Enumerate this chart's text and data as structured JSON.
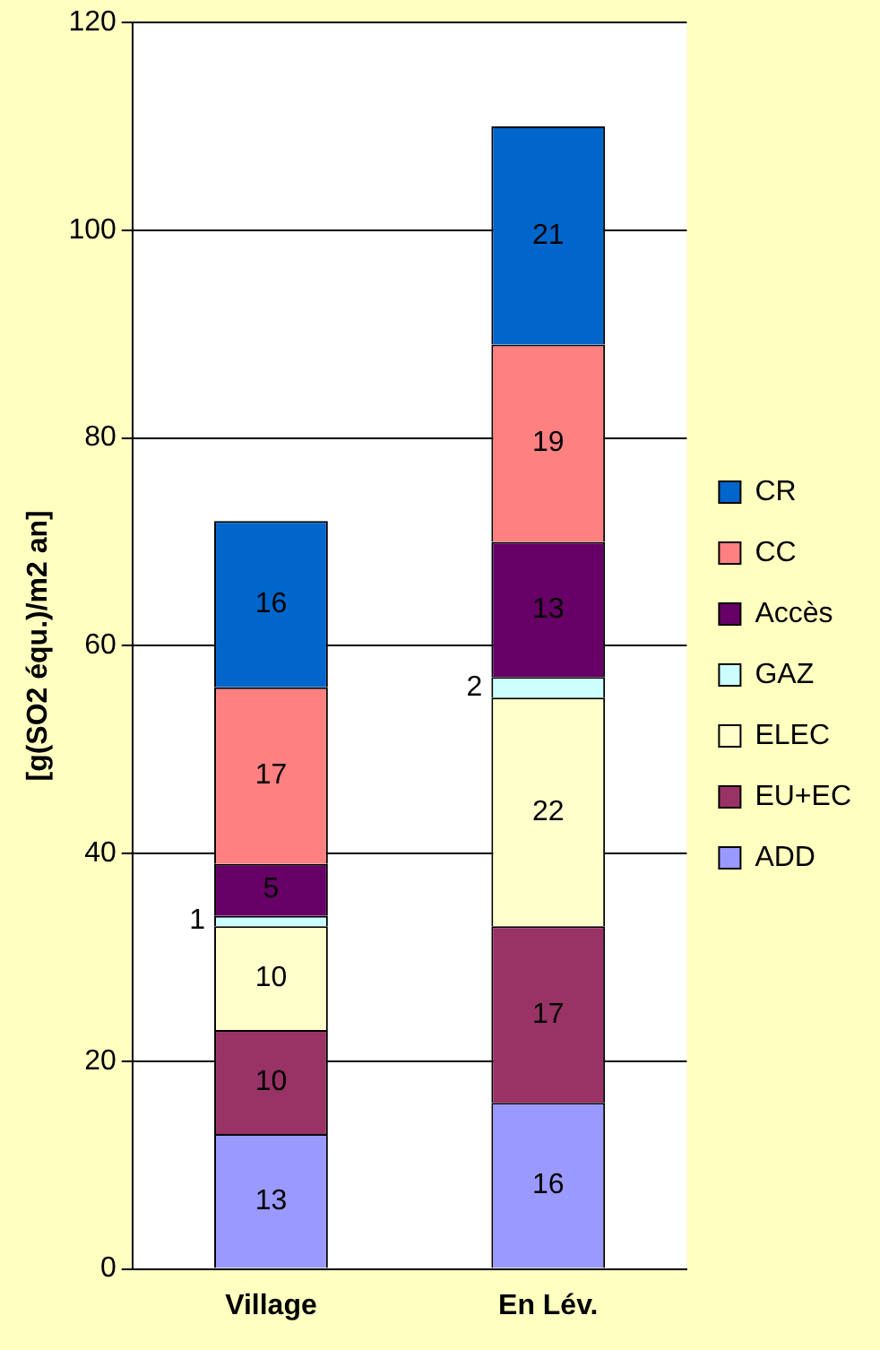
{
  "chart_data": {
    "type": "bar",
    "stacked": true,
    "ylabel": "[g(SO2 équ.)/m2 an]",
    "categories": [
      "Village",
      "En Lév."
    ],
    "series": [
      {
        "name": "ADD",
        "color": "#9999ff",
        "values": [
          13,
          16
        ]
      },
      {
        "name": "EU+EC",
        "color": "#993366",
        "values": [
          10,
          17
        ]
      },
      {
        "name": "ELEC",
        "color": "#ffffcc",
        "values": [
          10,
          22
        ]
      },
      {
        "name": "GAZ",
        "color": "#ccffff",
        "values": [
          1,
          2
        ]
      },
      {
        "name": "Accès",
        "color": "#660066",
        "values": [
          5,
          13
        ]
      },
      {
        "name": "CC",
        "color": "#ff8080",
        "values": [
          17,
          19
        ]
      },
      {
        "name": "CR",
        "color": "#0066cc",
        "values": [
          16,
          21
        ]
      }
    ],
    "ylim": [
      0,
      120
    ],
    "yticks": [
      0,
      20,
      40,
      60,
      80,
      100,
      120
    ],
    "grid": "y",
    "legend": "right",
    "data_labels": true
  }
}
